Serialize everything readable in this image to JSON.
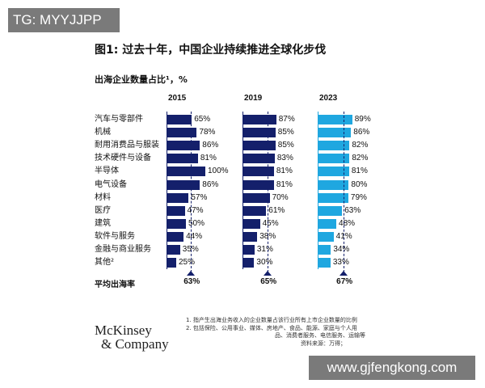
{
  "watermark_top": "TG: MYYJJPP",
  "watermark_bottom": "www.gjfengkong.com",
  "title": "图1: 过去十年，中国企业持续推进全球化步伐",
  "subtitle": "出海企业数量占比¹，%",
  "avg_label": "平均出海率",
  "logo": [
    "McKinsey",
    "& Company"
  ],
  "notes": [
    "1.  指产生出海业务收入的企业数量占该行业所有上市企业数量的比例",
    "2.  包括保险、公用事业、媒体、房地产、食品、能源、家庭与个人用",
    "品、消费者服务、电信服务、运输等",
    "资料来源：万得；"
  ],
  "chart_data": {
    "type": "bar",
    "orientation": "horizontal",
    "title": "图1: 过去十年，中国企业持续推进全球化步伐",
    "subtitle": "出海企业数量占比¹，%",
    "unit": "%",
    "xlim": [
      0,
      100
    ],
    "categories": [
      "汽车与零部件",
      "机械",
      "耐用消费品与服装",
      "技术硬件与设备",
      "半导体",
      "电气设备",
      "材料",
      "医疗",
      "建筑",
      "软件与服务",
      "金融与商业服务",
      "其他²"
    ],
    "series": [
      {
        "name": "2015",
        "color": "#14206b",
        "values": [
          65,
          78,
          86,
          81,
          100,
          86,
          57,
          47,
          50,
          44,
          35,
          25
        ],
        "average": 63
      },
      {
        "name": "2019",
        "color": "#14206b",
        "values": [
          87,
          85,
          85,
          83,
          81,
          81,
          70,
          61,
          45,
          38,
          31,
          30
        ],
        "average": 65
      },
      {
        "name": "2023",
        "color": "#1fa7e0",
        "values": [
          89,
          86,
          82,
          82,
          81,
          80,
          79,
          63,
          48,
          41,
          34,
          33
        ],
        "average": 67
      }
    ]
  }
}
